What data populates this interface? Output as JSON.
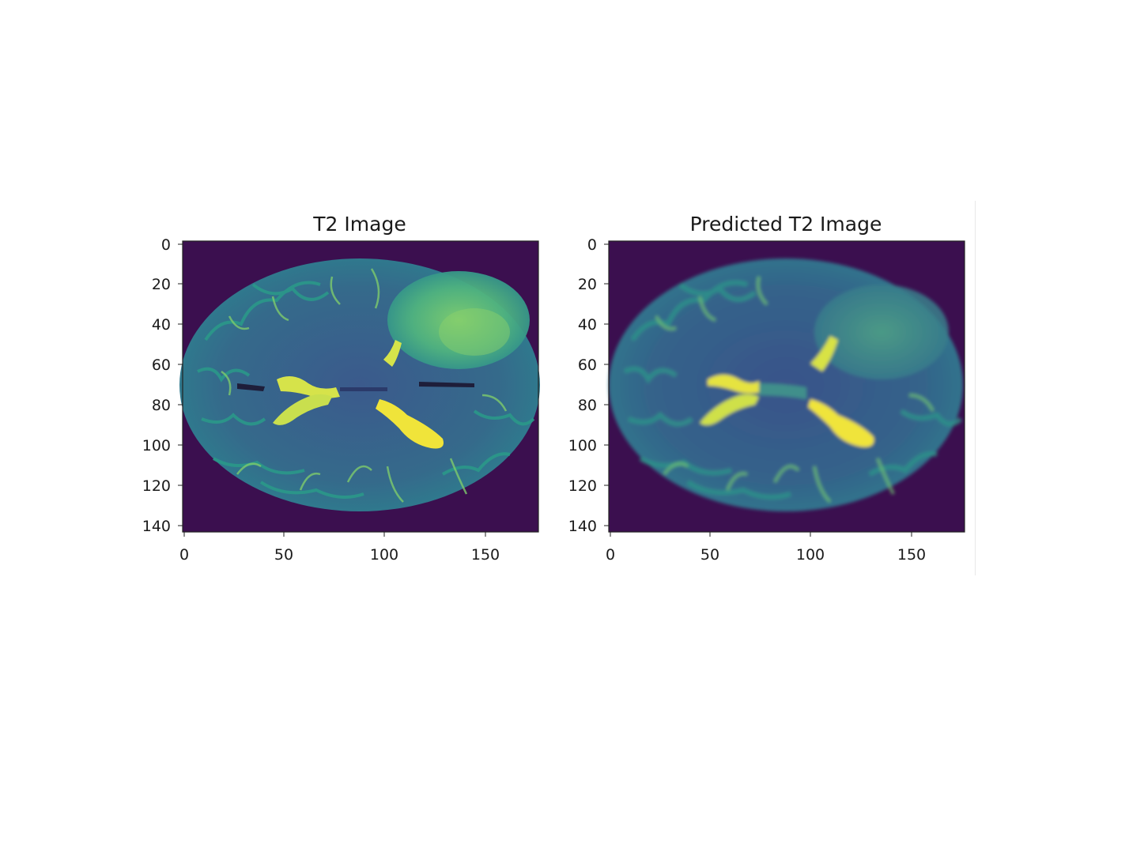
{
  "figure": {
    "panels": [
      {
        "title": "T2 Image",
        "x_ticks": [
          "0",
          "50",
          "100",
          "150"
        ],
        "y_ticks": [
          "0",
          "20",
          "40",
          "60",
          "80",
          "100",
          "120",
          "140"
        ],
        "image": "axial-brain-mri-t2-viridis"
      },
      {
        "title": "Predicted T2 Image",
        "x_ticks": [
          "0",
          "50",
          "100",
          "150"
        ],
        "y_ticks": [
          "0",
          "20",
          "40",
          "60",
          "80",
          "100",
          "120",
          "140"
        ],
        "image": "axial-brain-mri-predicted-t2-viridis-smooth"
      }
    ],
    "colormap": {
      "background": "#3b0f4f",
      "tissue_dark": "#3a4f8a",
      "tissue_mid": "#2e7f8e",
      "fluid": "#d6e34a",
      "fluid_bright": "#f2e33a"
    }
  }
}
